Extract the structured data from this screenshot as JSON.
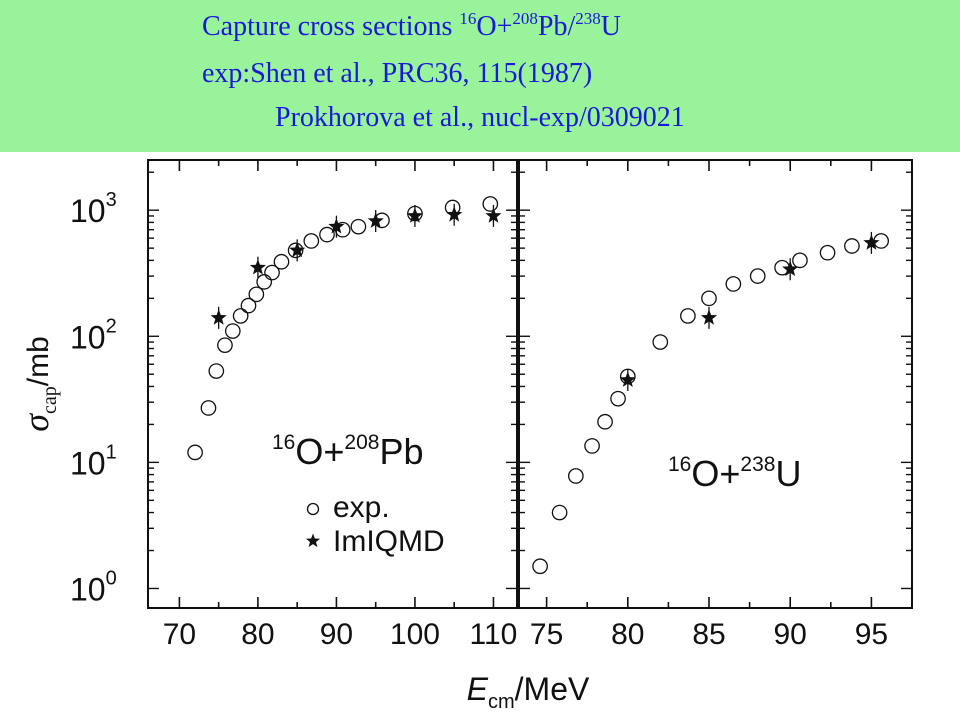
{
  "banner": {
    "line1_prefix": "Capture cross sections ",
    "line1_sup1": "16",
    "line1_mid1": "O+",
    "line1_sup2": "208",
    "line1_mid2": "Pb/",
    "line1_sup3": "238",
    "line1_suffix": "U",
    "line2": "exp:Shen et al., PRC36, 115(1987)",
    "line3": "Prokhorova et al., nucl-exp/0309021"
  },
  "colors": {
    "banner_bg": "#99f39b",
    "banner_text": "#1a1ad6",
    "ink": "#111111"
  },
  "axis_labels": {
    "y_sigma": "σ",
    "y_sub": "cap",
    "y_unit": "/mb",
    "x_E": "E",
    "x_sub": "cm",
    "x_unit": "/MeV"
  },
  "chart_data": [
    {
      "type": "scatter",
      "panel": "left",
      "log_y": true,
      "xlim": [
        66,
        113
      ],
      "ylim": [
        0.7,
        2500
      ],
      "x_ticks": [
        70,
        80,
        90,
        100,
        110
      ],
      "y_ticks": [
        {
          "value": 1,
          "base": "10",
          "exp": "0"
        },
        {
          "value": 10,
          "base": "10",
          "exp": "1"
        },
        {
          "value": 100,
          "base": "10",
          "exp": "2"
        },
        {
          "value": 1000,
          "base": "10",
          "exp": "3"
        }
      ],
      "reaction": {
        "sup1": "16",
        "el1": "O+",
        "sup2": "208",
        "el2": "Pb"
      },
      "legend": {
        "exp": "exp.",
        "model": "ImIQMD"
      },
      "series": [
        {
          "name": "exp.",
          "marker": "open-circle",
          "x": [
            72.0,
            73.7,
            74.7,
            75.8,
            76.8,
            77.8,
            78.8,
            79.8,
            80.8,
            81.8,
            83.0,
            84.8,
            86.8,
            88.8,
            90.8,
            92.8,
            95.8,
            100.0,
            104.8,
            109.6
          ],
          "y": [
            12,
            27,
            53,
            85,
            110,
            145,
            175,
            215,
            270,
            320,
            390,
            480,
            570,
            640,
            700,
            740,
            830,
            940,
            1050,
            1120
          ]
        },
        {
          "name": "ImIQMD",
          "marker": "star",
          "x": [
            75.0,
            80.0,
            85.0,
            90.0,
            95.0,
            100.0,
            105.0,
            110.0
          ],
          "y": [
            140,
            350,
            480,
            740,
            820,
            900,
            920,
            900
          ]
        }
      ]
    },
    {
      "type": "scatter",
      "panel": "right",
      "log_y": true,
      "xlim": [
        73.3,
        97.5
      ],
      "ylim": [
        0.7,
        2500
      ],
      "x_ticks": [
        75,
        80,
        85,
        90,
        95
      ],
      "y_ticks": [
        {
          "value": 1,
          "base": "10",
          "exp": "0"
        },
        {
          "value": 10,
          "base": "10",
          "exp": "1"
        },
        {
          "value": 100,
          "base": "10",
          "exp": "2"
        },
        {
          "value": 1000,
          "base": "10",
          "exp": "3"
        }
      ],
      "reaction": {
        "sup1": "16",
        "el1": "O+",
        "sup2": "238",
        "el2": "U"
      },
      "series": [
        {
          "name": "exp.",
          "marker": "open-circle",
          "x": [
            74.6,
            75.8,
            76.8,
            77.8,
            78.6,
            79.4,
            80.0,
            82.0,
            83.7,
            85.0,
            86.5,
            88.0,
            89.5,
            90.6,
            92.3,
            93.8,
            95.6
          ],
          "y": [
            1.5,
            4.0,
            7.8,
            13.5,
            21,
            32,
            48,
            90,
            145,
            200,
            260,
            300,
            350,
            400,
            460,
            520,
            570
          ]
        },
        {
          "name": "ImIQMD",
          "marker": "star",
          "x": [
            80.0,
            85.0,
            90.0,
            95.0
          ],
          "y": [
            45,
            140,
            340,
            550
          ]
        }
      ]
    }
  ]
}
